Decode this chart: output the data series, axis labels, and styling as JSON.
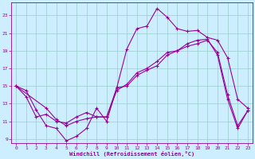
{
  "xlabel": "Windchill (Refroidissement éolien,°C)",
  "bg_color": "#cceeff",
  "line_color": "#990099",
  "grid_color": "#99cccc",
  "xlim": [
    -0.5,
    23.5
  ],
  "ylim": [
    8.5,
    24.5
  ],
  "xticks": [
    0,
    1,
    2,
    3,
    4,
    5,
    6,
    7,
    8,
    9,
    10,
    11,
    12,
    13,
    14,
    15,
    16,
    17,
    18,
    19,
    20,
    21,
    22,
    23
  ],
  "yticks": [
    9,
    11,
    13,
    15,
    17,
    19,
    21,
    23
  ],
  "line1_x": [
    0,
    1,
    2,
    3,
    4,
    5,
    6,
    7,
    8,
    9,
    10,
    11,
    12,
    13,
    14,
    15,
    16,
    17,
    18,
    19,
    20,
    21,
    22,
    23
  ],
  "line1_y": [
    15.0,
    14.5,
    12.3,
    10.5,
    10.2,
    8.8,
    9.3,
    10.2,
    12.5,
    11.0,
    14.8,
    19.2,
    21.5,
    21.8,
    23.8,
    22.8,
    21.5,
    21.2,
    21.3,
    20.5,
    20.2,
    18.2,
    13.5,
    12.5
  ],
  "line2_x": [
    0,
    3,
    4,
    5,
    6,
    7,
    8,
    9,
    10,
    11,
    12,
    13,
    14,
    15,
    16,
    17,
    18,
    19,
    20,
    21,
    22,
    23
  ],
  "line2_y": [
    15.0,
    12.5,
    11.2,
    10.5,
    11.0,
    11.3,
    11.5,
    11.5,
    14.8,
    15.0,
    16.2,
    16.8,
    17.3,
    18.5,
    19.0,
    19.5,
    19.8,
    20.2,
    18.8,
    14.0,
    10.5,
    12.2
  ],
  "line3_x": [
    0,
    1,
    2,
    3,
    4,
    5,
    6,
    7,
    8,
    9,
    10,
    11,
    12,
    13,
    14,
    15,
    16,
    17,
    18,
    19,
    20,
    21,
    22,
    23
  ],
  "line3_y": [
    15.0,
    13.8,
    11.5,
    11.8,
    11.0,
    10.8,
    11.5,
    12.0,
    11.5,
    11.5,
    14.5,
    15.2,
    16.5,
    17.0,
    17.8,
    18.8,
    19.0,
    19.8,
    20.2,
    20.3,
    18.5,
    13.5,
    10.2,
    12.2
  ],
  "marker": "+",
  "markersize": 3,
  "linewidth": 0.8
}
